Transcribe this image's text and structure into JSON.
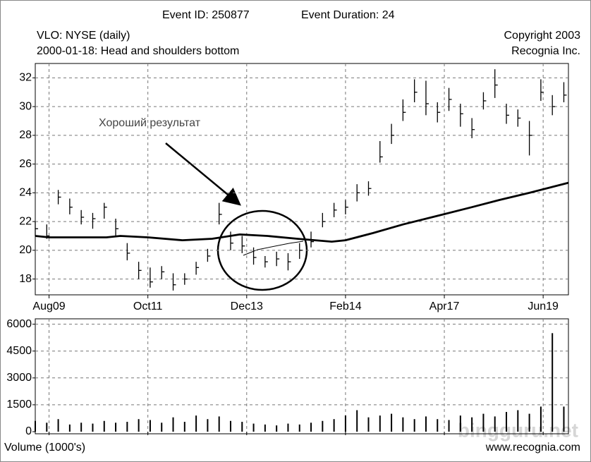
{
  "chart_data": [
    {
      "type": "ohlc",
      "title": "VLO: NYSE (daily)",
      "subtitle": "2000-01-18: Head and shoulders bottom",
      "annotations": [
        "Event ID: 250877",
        "Event Duration: 24",
        "Copyright 2003",
        "Recognia Inc.",
        "Хороший результат"
      ],
      "x": [
        0,
        5,
        10,
        15,
        20,
        25,
        30,
        35,
        40,
        45,
        50,
        55,
        60,
        65,
        70,
        75,
        80,
        85,
        90,
        95,
        100,
        105,
        110,
        115,
        120,
        125,
        130,
        135,
        140,
        145,
        150,
        155,
        160,
        165,
        170,
        175,
        180,
        185,
        190,
        195,
        200,
        205,
        210,
        215,
        220,
        225,
        230
      ],
      "high": [
        22,
        21.8,
        24.2,
        23.6,
        22.8,
        22.6,
        23.3,
        22.2,
        20.5,
        19.2,
        18.8,
        18.9,
        18.4,
        18.4,
        19.2,
        20.1,
        23.3,
        21.3,
        21,
        20.2,
        19.6,
        19.9,
        19.8,
        20.5,
        21.3,
        22.6,
        23.3,
        23.5,
        24.6,
        24.8,
        27.6,
        28.8,
        30.5,
        31.9,
        31.8,
        30.3,
        31.3,
        30.2,
        29.2,
        31,
        32.6,
        30.2,
        29.8,
        29,
        31.9,
        30.8,
        31.7
      ],
      "low": [
        21,
        20.8,
        23.2,
        22.5,
        21.8,
        21.5,
        22.2,
        21,
        19.3,
        18,
        17.4,
        18,
        17.2,
        17.6,
        18.3,
        19.2,
        21.8,
        20,
        19.8,
        19,
        18.8,
        18.9,
        18.6,
        19.4,
        20.2,
        21.6,
        22.3,
        22.5,
        23.4,
        23.8,
        26.1,
        27.4,
        29,
        30.3,
        29.4,
        28.9,
        29.7,
        28.6,
        27.8,
        29.8,
        30.6,
        28.8,
        28.6,
        26.6,
        30.4,
        29.4,
        30.3
      ],
      "close": [
        21.5,
        21,
        23.7,
        23,
        22.3,
        22.2,
        23,
        21.5,
        19.8,
        18.6,
        17.8,
        18.5,
        17.6,
        18,
        18.8,
        19.6,
        22.5,
        20.5,
        20.3,
        19.5,
        19.2,
        19.4,
        19.2,
        20,
        20.6,
        22,
        22.8,
        23,
        24,
        24.3,
        26.5,
        28,
        29.6,
        31,
        30.2,
        29.6,
        30.5,
        29.5,
        28.4,
        30.4,
        31.5,
        29.4,
        29.2,
        28,
        31,
        30,
        30.8
      ],
      "moving_average": {
        "x": [
          0,
          6,
          31,
          37,
          49,
          64,
          77,
          89,
          101,
          114,
          129,
          135,
          147,
          160,
          175,
          190,
          202,
          215,
          232
        ],
        "values": [
          21,
          20.9,
          20.9,
          21,
          20.9,
          20.7,
          20.8,
          21.1,
          21,
          20.8,
          20.6,
          20.7,
          21.2,
          21.8,
          22.4,
          23,
          23.5,
          24,
          24.7
        ]
      },
      "xlim": [
        0,
        232
      ],
      "xticks": [
        {
          "value": 6,
          "label": "Aug09"
        },
        {
          "value": 49,
          "label": "Oct11"
        },
        {
          "value": 92,
          "label": "Dec13"
        },
        {
          "value": 135,
          "label": "Feb14"
        },
        {
          "value": 178,
          "label": "Apr17"
        },
        {
          "value": 221,
          "label": "Jun19"
        }
      ],
      "ylim": [
        16.9,
        33
      ],
      "yticks": [
        18,
        20,
        22,
        24,
        26,
        28,
        30,
        32
      ],
      "grid": true,
      "color": "#000000"
    },
    {
      "type": "bar",
      "ylabel": "Volume (1000's)",
      "annotations": [
        "www.recognia.com",
        "bingguru.net"
      ],
      "x": [
        0,
        5,
        10,
        15,
        20,
        25,
        30,
        35,
        40,
        45,
        50,
        55,
        60,
        65,
        70,
        75,
        80,
        85,
        90,
        95,
        100,
        105,
        110,
        115,
        120,
        125,
        130,
        135,
        140,
        145,
        150,
        155,
        160,
        165,
        170,
        175,
        180,
        185,
        190,
        195,
        200,
        205,
        210,
        215,
        220,
        225,
        230
      ],
      "values": [
        600,
        500,
        700,
        400,
        500,
        450,
        600,
        500,
        550,
        700,
        650,
        500,
        800,
        550,
        900,
        700,
        850,
        600,
        550,
        450,
        400,
        350,
        450,
        400,
        500,
        600,
        700,
        900,
        1200,
        800,
        900,
        1000,
        800,
        700,
        850,
        700,
        650,
        900,
        800,
        1000,
        850,
        1100,
        1200,
        1000,
        1400,
        5500,
        1400
      ],
      "xlim": [
        0,
        232
      ],
      "xticks": [
        6,
        49,
        92,
        135,
        178,
        221
      ],
      "ylim": [
        0,
        6300
      ],
      "yticks": [
        0,
        1500,
        3000,
        4500,
        6000
      ],
      "grid": true,
      "color": "#000000"
    }
  ]
}
